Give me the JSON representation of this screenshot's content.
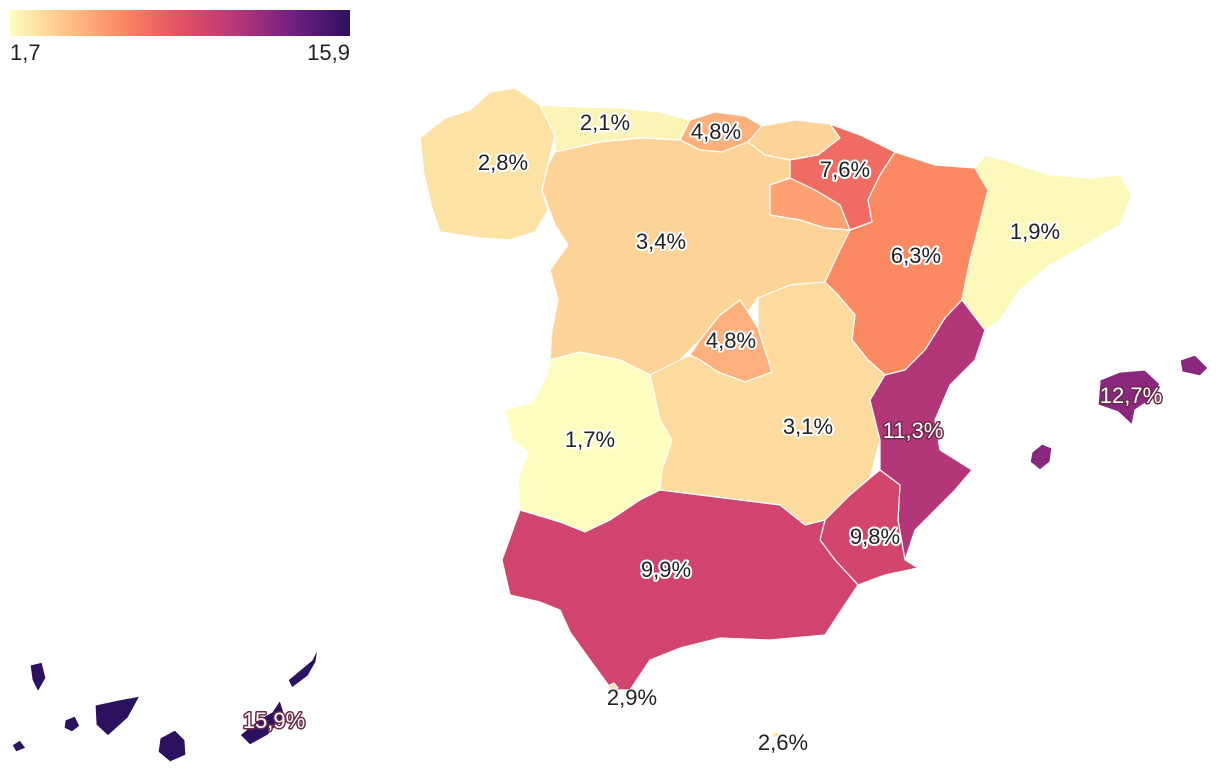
{
  "legend": {
    "min_label": "1,7",
    "max_label": "15,9",
    "min": 1.7,
    "max": 15.9,
    "colors": [
      "#fcfdbf",
      "#fec287",
      "#fb8761",
      "#e55064",
      "#b73779",
      "#721f81",
      "#2c115f"
    ]
  },
  "regions": [
    {
      "id": "galicia",
      "value": 2.8,
      "label": "2,8%"
    },
    {
      "id": "asturias",
      "value": 2.1,
      "label": "2,1%"
    },
    {
      "id": "cantabria",
      "value": 4.8,
      "label": "4,8%"
    },
    {
      "id": "pais-vasco",
      "value": 3.4,
      "label": ""
    },
    {
      "id": "navarra",
      "value": 7.6,
      "label": "7,6%"
    },
    {
      "id": "la-rioja",
      "value": 5.4,
      "label": ""
    },
    {
      "id": "castilla-y-leon",
      "value": 3.4,
      "label": "3,4%"
    },
    {
      "id": "aragon",
      "value": 6.3,
      "label": "6,3%"
    },
    {
      "id": "cataluna",
      "value": 1.9,
      "label": "1,9%"
    },
    {
      "id": "madrid",
      "value": 4.8,
      "label": "4,8%"
    },
    {
      "id": "castilla-la-mancha",
      "value": 3.1,
      "label": "3,1%"
    },
    {
      "id": "extremadura",
      "value": 1.7,
      "label": "1,7%"
    },
    {
      "id": "comunidad-valenciana",
      "value": 11.3,
      "label": "11,3%"
    },
    {
      "id": "murcia",
      "value": 9.8,
      "label": "9,8%"
    },
    {
      "id": "andalucia",
      "value": 9.9,
      "label": "9,9%"
    },
    {
      "id": "baleares",
      "value": 12.7,
      "label": "12,7%"
    },
    {
      "id": "canarias",
      "value": 15.9,
      "label": "15,9%"
    },
    {
      "id": "ceuta",
      "value": 2.9,
      "label": "2,9%"
    },
    {
      "id": "melilla",
      "value": 2.6,
      "label": "2,6%"
    }
  ]
}
